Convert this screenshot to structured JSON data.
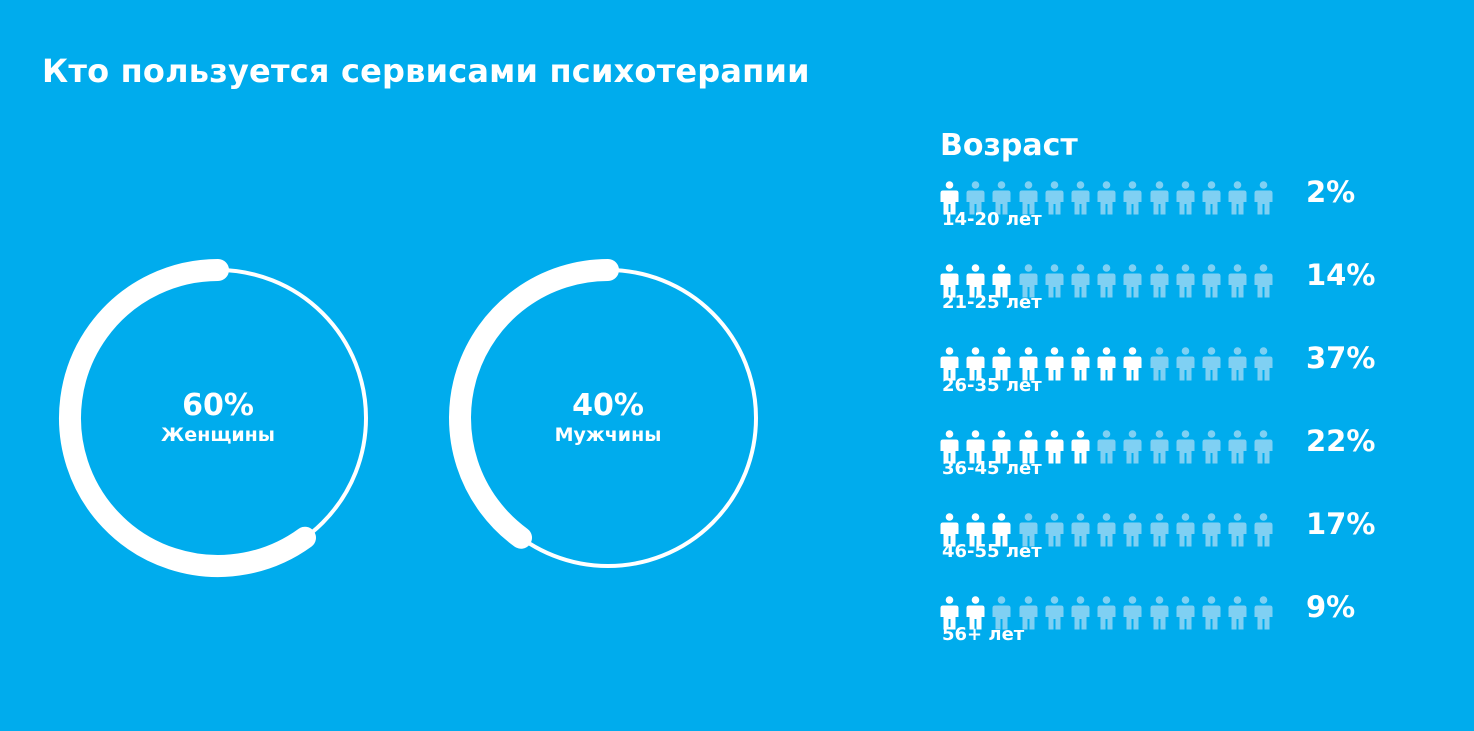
{
  "title": "Кто пользуется сервисами психотерапии",
  "colors": {
    "background": "#00aced",
    "foreground": "#ffffff",
    "inactive_icon": "#7fd0f3"
  },
  "chart_data": [
    {
      "type": "pie",
      "subtype": "donut",
      "categories": [
        "Женщины",
        "Мужчины"
      ],
      "values": [
        60,
        40
      ],
      "unit": "%",
      "items": [
        {
          "pct_label": "60%",
          "name": "Женщины",
          "value": 60
        },
        {
          "pct_label": "40%",
          "name": "Мужчины",
          "value": 40
        }
      ]
    },
    {
      "type": "bar",
      "subtype": "pictogram",
      "title": "Возраст",
      "icons_per_row": 13,
      "rows": [
        {
          "label": "14-20 лет",
          "pct_label": "2%",
          "value": 2,
          "active_icons": 1
        },
        {
          "label": "21-25 лет",
          "pct_label": "14%",
          "value": 14,
          "active_icons": 3
        },
        {
          "label": "26-35 лет",
          "pct_label": "37%",
          "value": 37,
          "active_icons": 8
        },
        {
          "label": "36-45 лет",
          "pct_label": "22%",
          "value": 22,
          "active_icons": 6
        },
        {
          "label": "46-55 лет",
          "pct_label": "17%",
          "value": 17,
          "active_icons": 3
        },
        {
          "label": "56+ лет",
          "pct_label": "9%",
          "value": 9,
          "active_icons": 2
        }
      ]
    }
  ]
}
